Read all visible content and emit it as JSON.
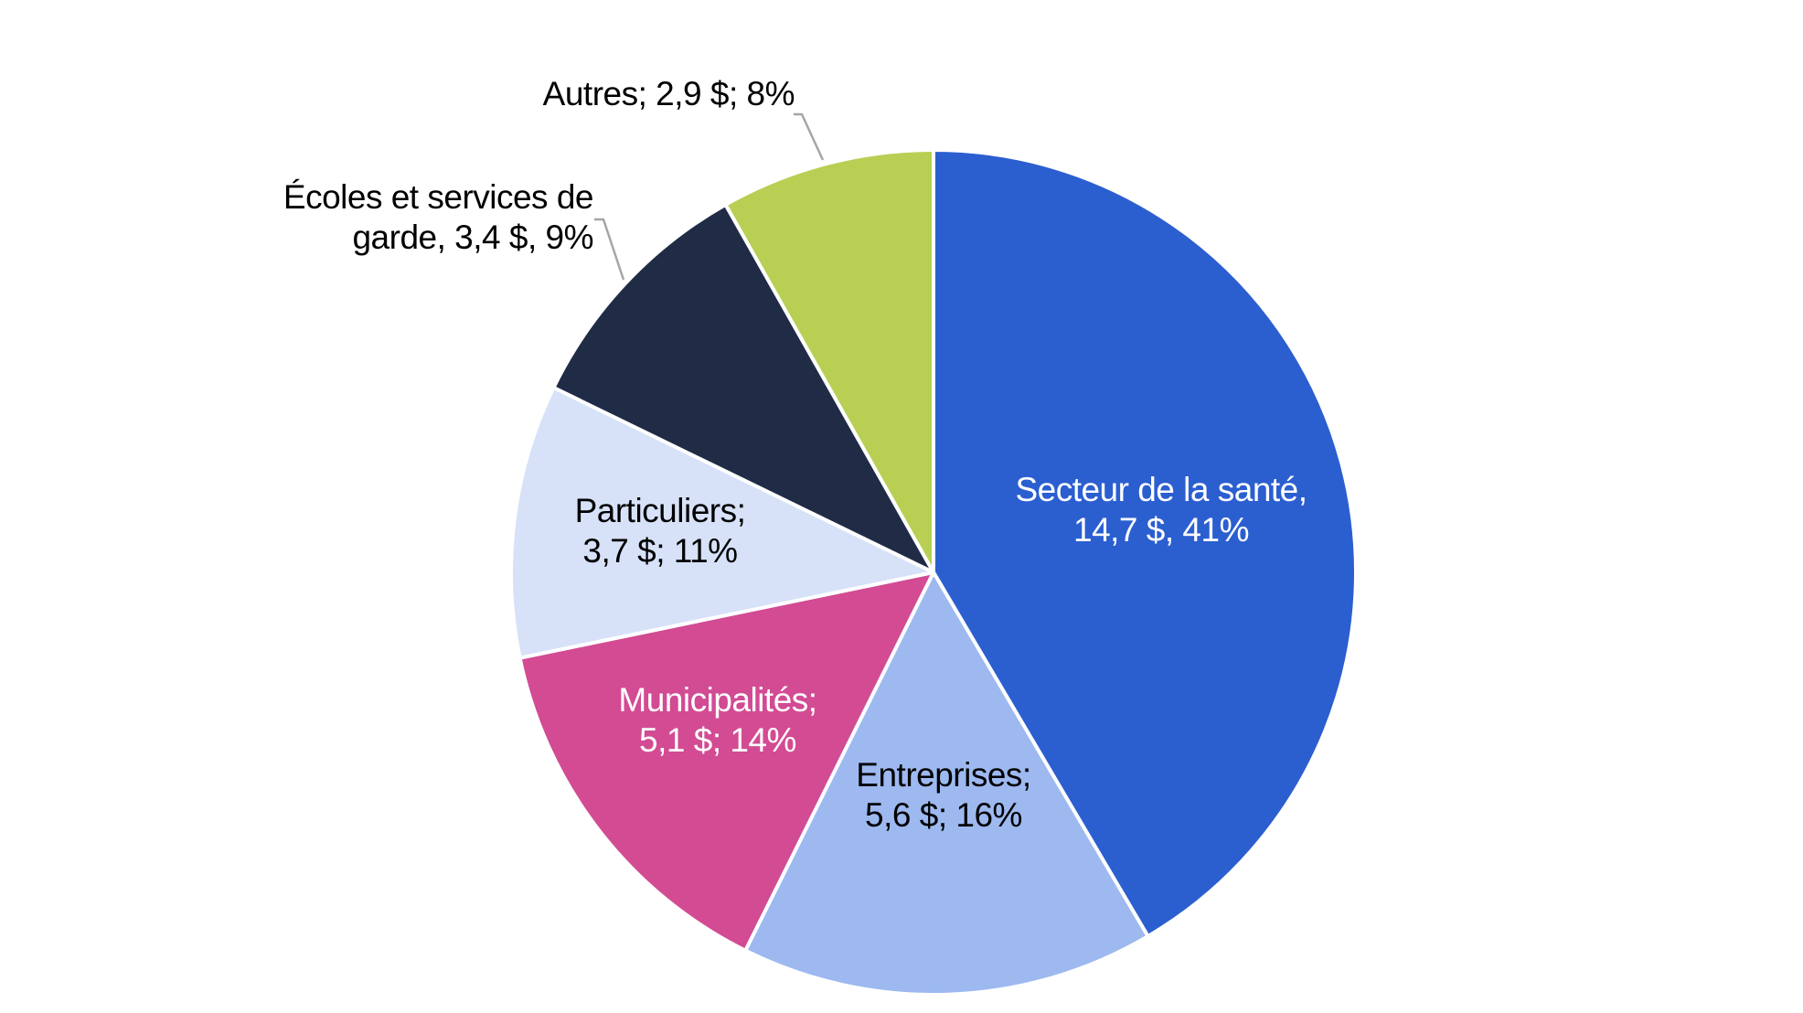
{
  "chart_data": {
    "type": "pie",
    "title": "",
    "slices": [
      {
        "name": "Secteur de la santé",
        "value": 14.7,
        "percent": 41,
        "color": "#2B5FD0",
        "label_lines": [
          "Secteur de la santé,",
          "14,7 $, 41%"
        ],
        "label_color": "#ffffff",
        "label_position": "inside"
      },
      {
        "name": "Entreprises",
        "value": 5.6,
        "percent": 16,
        "color": "#9DB9F0",
        "label_lines": [
          "Entreprises;",
          "5,6 $; 16%"
        ],
        "label_color": "#000000",
        "label_position": "inside"
      },
      {
        "name": "Municipalités",
        "value": 5.1,
        "percent": 14,
        "color": "#D24B93",
        "label_lines": [
          "Municipalités;",
          "5,1 $; 14%"
        ],
        "label_color": "#ffffff",
        "label_position": "inside"
      },
      {
        "name": "Particuliers",
        "value": 3.7,
        "percent": 11,
        "color": "#D7E2F9",
        "label_lines": [
          "Particuliers;",
          "3,7 $; 11%"
        ],
        "label_color": "#000000",
        "label_position": "inside"
      },
      {
        "name": "Écoles et services de garde",
        "value": 3.4,
        "percent": 9,
        "color": "#202C46",
        "label_lines": [
          "Écoles et services de",
          "garde,  3,4 $, 9%"
        ],
        "label_color": "#000000",
        "label_position": "outside"
      },
      {
        "name": "Autres",
        "value": 2.9,
        "percent": 8,
        "color": "#B8CF54",
        "label_lines": [
          "Autres;  2,9 $; 8%"
        ],
        "label_color": "#000000",
        "label_position": "outside"
      }
    ],
    "start_angle": "12 o'clock",
    "direction": "clockwise",
    "slice_border_color": "#ffffff",
    "leader_line_color": "#A6A6A6",
    "legend": "none"
  }
}
